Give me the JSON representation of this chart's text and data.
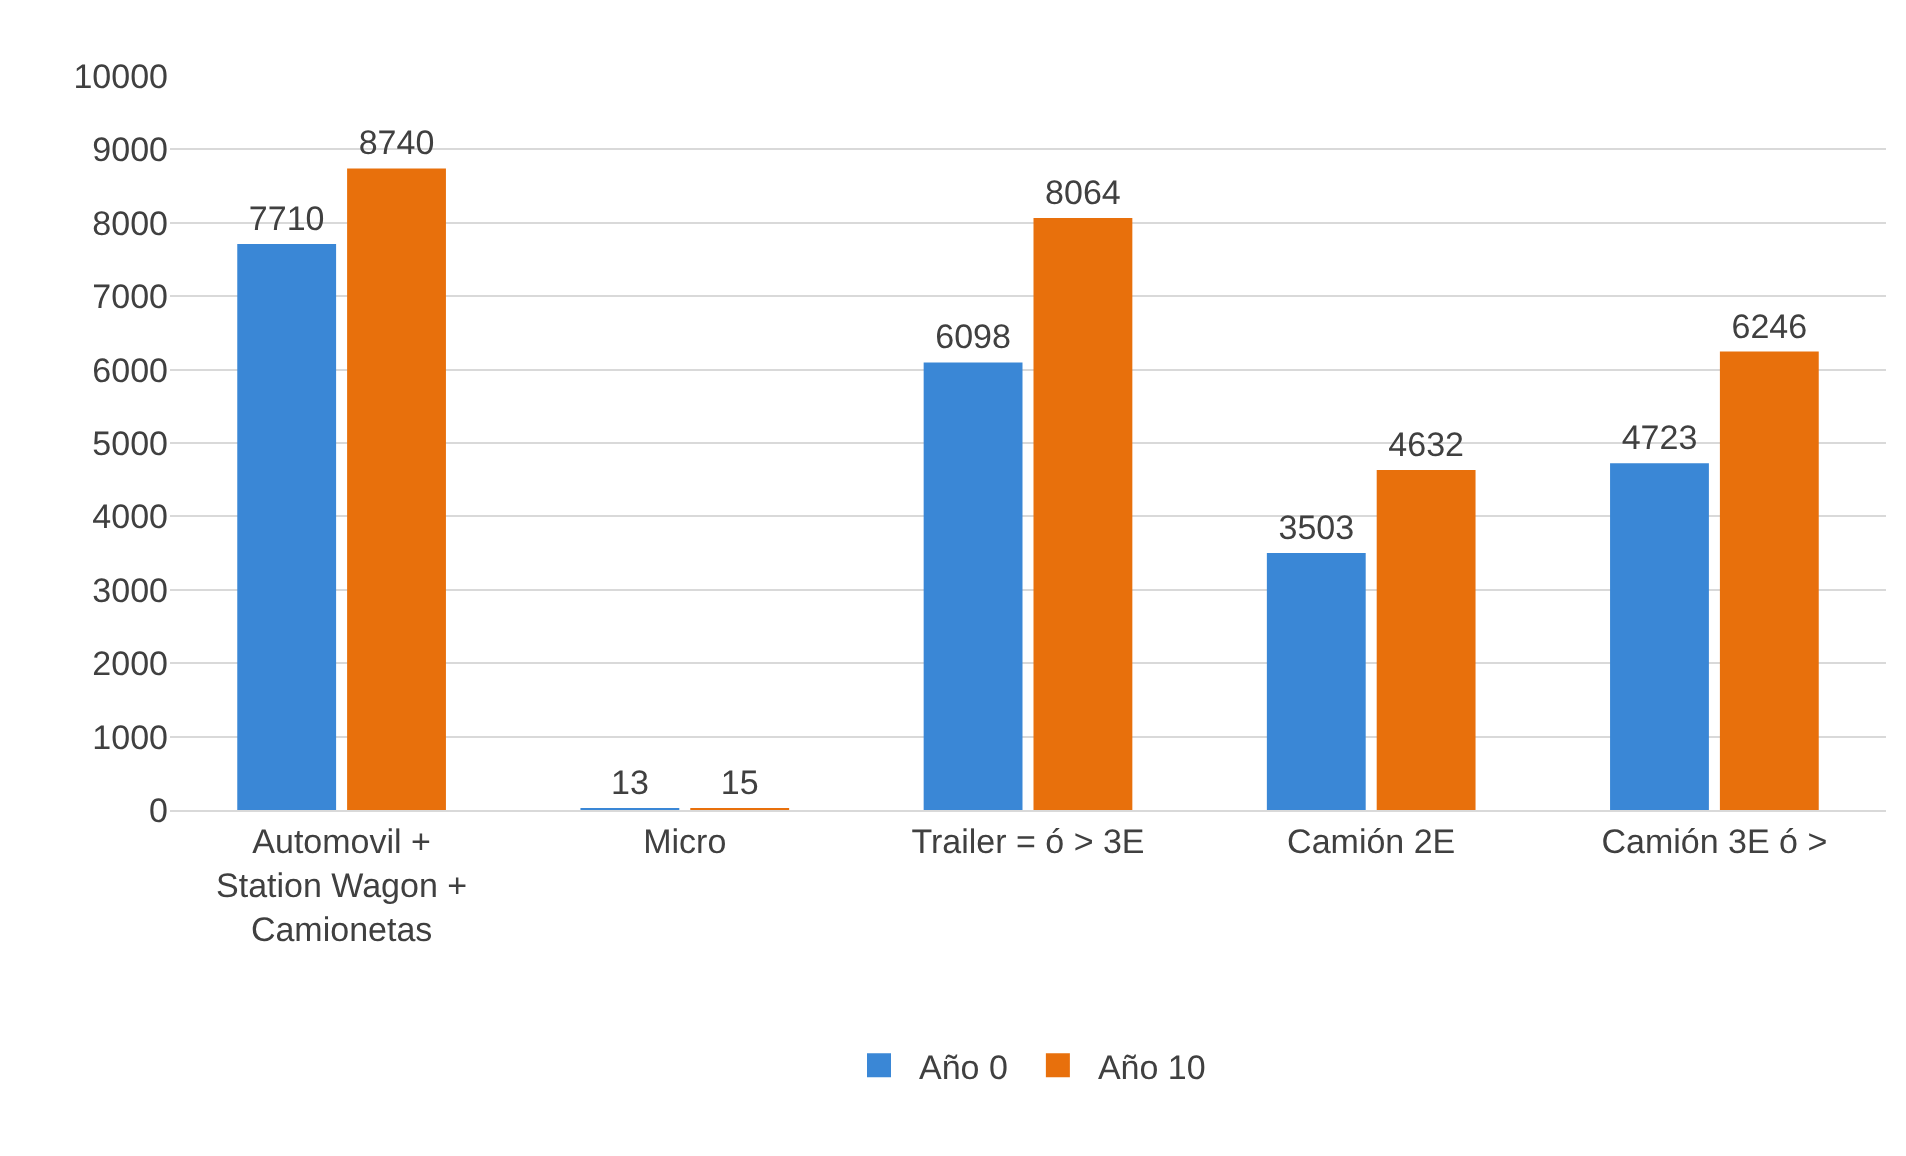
{
  "chart_data": {
    "type": "bar",
    "categories": [
      "Automovil + Station Wagon + Camionetas",
      "Micro",
      "Trailer = ó > 3E",
      "Camión 2E",
      "Camión 3E ó >"
    ],
    "series": [
      {
        "name": "Año 0",
        "color": "#3a87d6",
        "values": [
          7710,
          13,
          6098,
          3503,
          4723
        ]
      },
      {
        "name": "Año 10",
        "color": "#e8700c",
        "values": [
          8740,
          15,
          8064,
          4632,
          6246
        ]
      }
    ],
    "ylim": [
      0,
      10000
    ],
    "yticks": [
      0,
      1000,
      2000,
      3000,
      4000,
      5000,
      6000,
      7000,
      8000,
      9000,
      10000
    ],
    "grid": "y",
    "legend": "bottom",
    "data_labels": true
  }
}
